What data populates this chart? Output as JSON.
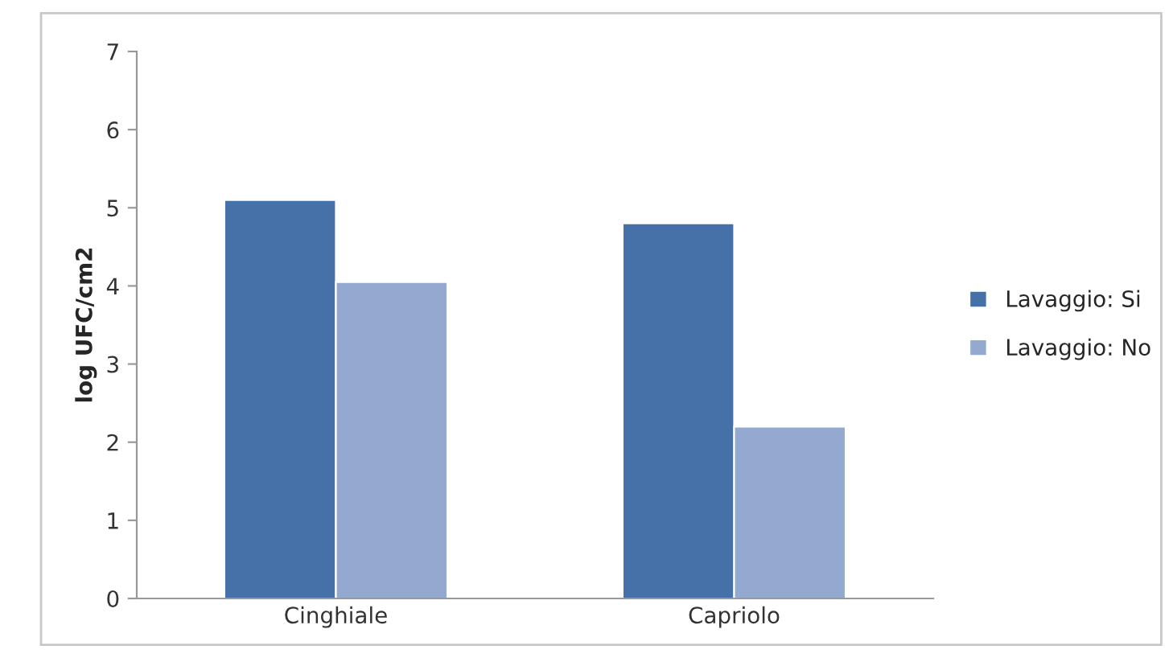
{
  "chart_data": {
    "type": "bar",
    "ylabel": "log UFC/cm2",
    "categories": [
      "Cinghiale",
      "Capriolo"
    ],
    "series": [
      {
        "name": "Lavaggio: Si",
        "color": "#4571a8",
        "values": [
          5.1,
          4.8
        ]
      },
      {
        "name": "Lavaggio: No",
        "color": "#93a9d0",
        "values": [
          4.05,
          2.2
        ]
      }
    ],
    "ylim": [
      0,
      7
    ],
    "yticks": [
      0,
      1,
      2,
      3,
      4,
      5,
      6,
      7
    ],
    "grid": false,
    "legend": "right"
  }
}
